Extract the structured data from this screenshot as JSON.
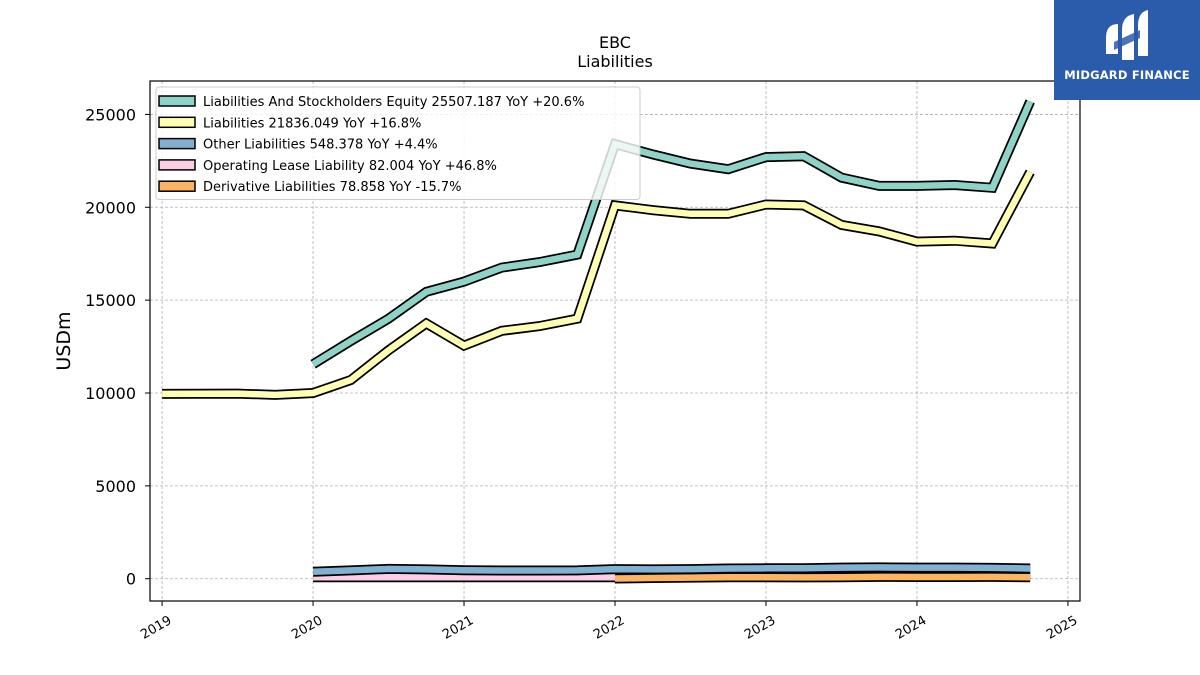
{
  "chart_data": {
    "type": "line",
    "title": "EBC",
    "subtitle": "Liabilities",
    "ylabel": "USDm",
    "xlabel": "",
    "xlim": [
      2019.0,
      2025.0
    ],
    "ylim": [
      -1200,
      26800
    ],
    "x_ticks": [
      "2019",
      "2020",
      "2021",
      "2022",
      "2023",
      "2024",
      "2025"
    ],
    "y_ticks": [
      0,
      5000,
      10000,
      15000,
      20000,
      25000
    ],
    "grid": true,
    "legend_position": "top-left",
    "series": [
      {
        "name": "Liabilities And Stockholders Equity",
        "legend_label": "Liabilities And Stockholders Equity  25507.187 YoY +20.6%",
        "color": "#8dd3c7",
        "x": [
          2020.0,
          2020.25,
          2020.5,
          2020.75,
          2021.0,
          2021.25,
          2021.5,
          2021.75,
          2022.0,
          2022.25,
          2022.5,
          2022.75,
          2023.0,
          2023.25,
          2023.5,
          2023.75,
          2024.0,
          2024.25,
          2024.5,
          2024.75
        ],
        "values": [
          11550,
          12800,
          14000,
          15450,
          16000,
          16750,
          17050,
          17450,
          23400,
          22850,
          22350,
          22050,
          22700,
          22750,
          21600,
          21150,
          21150,
          21200,
          21050,
          25700
        ]
      },
      {
        "name": "Liabilities",
        "legend_label": "Liabilities  21836.049 YoY +16.8%",
        "color": "#ffffb3",
        "x": [
          2019.0,
          2019.25,
          2019.5,
          2019.75,
          2020.0,
          2020.25,
          2020.5,
          2020.75,
          2021.0,
          2021.25,
          2021.5,
          2021.75,
          2022.0,
          2022.25,
          2022.5,
          2022.75,
          2023.0,
          2023.25,
          2023.5,
          2023.75,
          2024.0,
          2024.25,
          2024.5,
          2024.75
        ],
        "values": [
          9950,
          9960,
          9970,
          9900,
          10000,
          10700,
          12300,
          13750,
          12550,
          13350,
          13600,
          14000,
          20100,
          19850,
          19650,
          19650,
          20150,
          20100,
          19050,
          18700,
          18150,
          18200,
          18050,
          21900
        ]
      },
      {
        "name": "Other Liabilities",
        "legend_label": "Other Liabilities  548.378 YoY +4.4%",
        "color": "#80b1d3",
        "x": [
          2020.0,
          2020.25,
          2020.5,
          2020.75,
          2021.0,
          2021.25,
          2021.5,
          2021.75,
          2022.0,
          2022.25,
          2022.5,
          2022.75,
          2023.0,
          2023.25,
          2023.5,
          2023.75,
          2024.0,
          2024.25,
          2024.5,
          2024.75
        ],
        "values": [
          380,
          450,
          530,
          500,
          460,
          440,
          440,
          450,
          520,
          500,
          520,
          550,
          560,
          560,
          600,
          610,
          600,
          600,
          580,
          550
        ]
      },
      {
        "name": "Operating Lease Liability",
        "legend_label": "Operating Lease Liability  82.004 YoY +46.8%",
        "color": "#fccde5",
        "x": [
          2020.0,
          2020.25,
          2020.5,
          2020.75,
          2021.0,
          2021.25,
          2021.5,
          2021.75,
          2022.0
        ],
        "values": [
          80,
          80,
          80,
          80,
          80,
          80,
          80,
          80,
          80
        ]
      },
      {
        "name": "Derivative Liabilities",
        "legend_label": "Derivative Liabilities  78.858 YoY -15.7%",
        "color": "#fdb462",
        "x": [
          2022.0,
          2022.25,
          2022.5,
          2022.75,
          2023.0,
          2023.25,
          2023.5,
          2023.75,
          2024.0,
          2024.25,
          2024.5,
          2024.75
        ],
        "values": [
          10,
          40,
          60,
          80,
          80,
          70,
          80,
          100,
          90,
          90,
          100,
          80
        ]
      }
    ]
  },
  "logo": {
    "text": "MIDGARD FINANCE",
    "color": "#2b5bab"
  }
}
